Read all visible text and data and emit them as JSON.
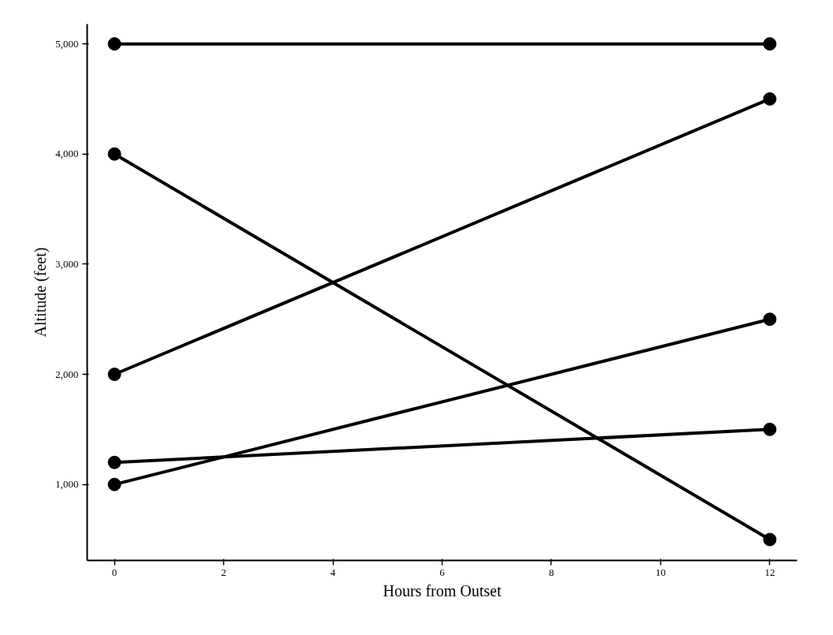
{
  "chart_data": {
    "type": "line",
    "xlabel": "Hours from Outset",
    "ylabel": "Altitude (feet)",
    "x": [
      0,
      12
    ],
    "series": [
      {
        "color": "#000000",
        "values": [
          5000,
          5000
        ]
      },
      {
        "color": "#000000",
        "values": [
          4000,
          500
        ]
      },
      {
        "color": "#000000",
        "values": [
          2000,
          4500
        ]
      },
      {
        "color": "#000000",
        "values": [
          1000,
          2500
        ]
      },
      {
        "color": "#000000",
        "values": [
          1200,
          1500
        ]
      }
    ],
    "xlim": [
      -0.5,
      12.5
    ],
    "ylim": [
      310,
      5180
    ],
    "xticks": [
      0,
      2,
      4,
      6,
      8,
      10,
      12
    ],
    "yticks": [
      {
        "value": 1000,
        "label": "1,000"
      },
      {
        "value": 2000,
        "label": "2,000"
      },
      {
        "value": 3000,
        "label": "3,000"
      },
      {
        "value": 4000,
        "label": "4,000"
      },
      {
        "value": 5000,
        "label": "5,000"
      }
    ],
    "marker": "circle",
    "line_style": "solid"
  }
}
